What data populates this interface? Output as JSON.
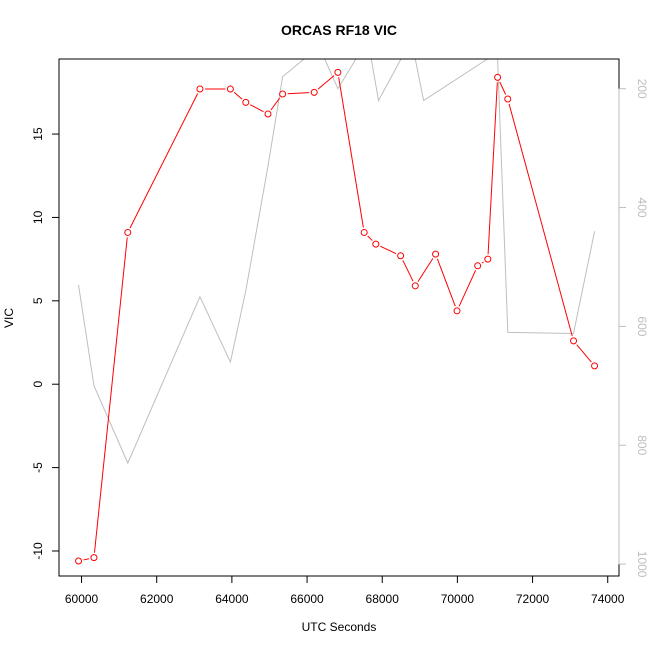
{
  "chart_data": {
    "type": "line",
    "title": "ORCAS RF18 VIC",
    "xlabel": "UTC Seconds",
    "ylabel": "VIC",
    "xlim": [
      59400,
      74300
    ],
    "ylim": [
      -11.5,
      19.5
    ],
    "x_ticks": [
      60000,
      62000,
      64000,
      66000,
      68000,
      70000,
      72000,
      74000
    ],
    "y_ticks": [
      -10,
      -5,
      0,
      5,
      10,
      15
    ],
    "y2lim": [
      1020,
      150
    ],
    "y2_ticks": [
      200,
      400,
      600,
      800,
      1000
    ],
    "grid": false,
    "legend": "none",
    "colors": {
      "primary": "#ff0000",
      "secondary": "#bebebe",
      "axis": "#000000"
    },
    "series": [
      {
        "axis": "left",
        "marker": "open-circle",
        "x": [
          59920,
          60330,
          61230,
          63150,
          63960,
          64370,
          64960,
          65350,
          66190,
          66820,
          67520,
          67830,
          68490,
          68880,
          69420,
          69990,
          70540,
          70810,
          71070,
          71340,
          73090,
          73650
        ],
        "y": [
          -10.6,
          -10.4,
          9.1,
          17.7,
          17.7,
          16.9,
          16.2,
          17.4,
          17.5,
          18.7,
          9.1,
          8.4,
          7.7,
          5.9,
          7.8,
          4.4,
          7.1,
          7.5,
          18.4,
          17.1,
          2.6,
          1.1
        ]
      },
      {
        "axis": "right",
        "x": [
          59920,
          60330,
          61230,
          63150,
          63960,
          64370,
          64960,
          65350,
          65920,
          66470,
          66820,
          67300,
          67710,
          67900,
          68500,
          68880,
          69100,
          70800,
          71070,
          71340,
          73090,
          73650
        ],
        "y": [
          530,
          700,
          830,
          550,
          660,
          540,
          330,
          180,
          150,
          150,
          200,
          150,
          150,
          220,
          150,
          150,
          220,
          150,
          150,
          610,
          612,
          440
        ]
      }
    ]
  }
}
